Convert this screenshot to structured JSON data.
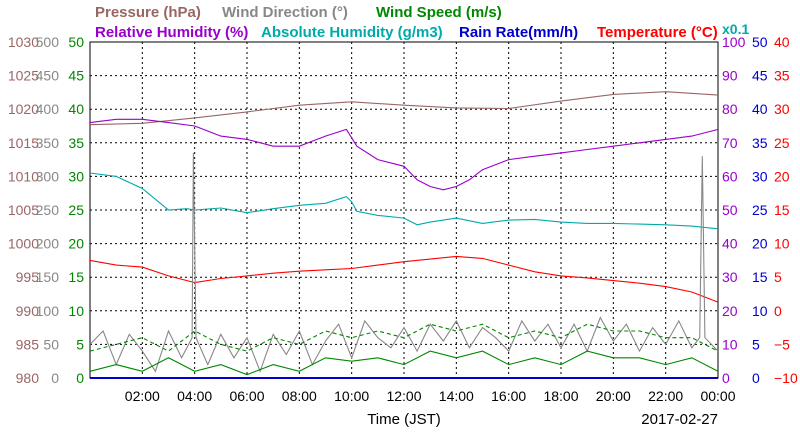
{
  "chart_data": {
    "type": "line",
    "legend": [
      {
        "label": "Pressure (hPa)",
        "color": "#996666"
      },
      {
        "label": "Wind Direction (°)",
        "color": "#888888"
      },
      {
        "label": "Wind Speed (m/s)",
        "color": "#008800"
      },
      {
        "label": "Relative Humidity (%)",
        "color": "#9900cc"
      },
      {
        "label": "Absolute Humidity (g/m3)",
        "color": "#00aaaa"
      },
      {
        "label": "Rain Rate(mm/h)",
        "color": "#0000cc"
      },
      {
        "label": "Temperature (°C)",
        "color": "#ff0000"
      }
    ],
    "scale_note": "x0.1",
    "xlabel": "Time (JST)",
    "date": "2017-02-27",
    "x_ticks": [
      "02:00",
      "04:00",
      "06:00",
      "08:00",
      "10:00",
      "12:00",
      "14:00",
      "16:00",
      "18:00",
      "20:00",
      "22:00",
      "00:00"
    ],
    "x_range": [
      "00:00",
      "24:00"
    ],
    "grid": true,
    "axes": {
      "pressure": {
        "color": "#996666",
        "ticks": [
          "1030",
          "1025",
          "1020",
          "1015",
          "1010",
          "1005",
          "1000",
          "995",
          "990",
          "985",
          "980"
        ],
        "range": [
          980,
          1030
        ]
      },
      "wind_direction": {
        "color": "#888888",
        "ticks": [
          "500",
          "450",
          "400",
          "350",
          "300",
          "250",
          "200",
          "150",
          "100",
          "50",
          "0"
        ],
        "range": [
          0,
          500
        ]
      },
      "wind_speed": {
        "color": "#008800",
        "ticks": [
          "50",
          "45",
          "40",
          "35",
          "30",
          "25",
          "20",
          "15",
          "10",
          "5",
          "0"
        ],
        "range": [
          0,
          50
        ]
      },
      "humidity": {
        "color": "#9900cc",
        "ticks": [
          "100",
          "90",
          "80",
          "70",
          "60",
          "50",
          "40",
          "30",
          "20",
          "10",
          "0"
        ],
        "range": [
          0,
          100
        ]
      },
      "rain_rate": {
        "color": "#0000cc",
        "ticks": [
          "50",
          "45",
          "40",
          "35",
          "30",
          "25",
          "20",
          "15",
          "10",
          "5",
          "0"
        ],
        "range": [
          0,
          50
        ]
      },
      "temperature": {
        "color": "#ff0000",
        "ticks": [
          "40",
          "35",
          "30",
          "25",
          "20",
          "15",
          "10",
          "5",
          "0",
          "−5",
          "−10"
        ],
        "range": [
          -10,
          40
        ]
      }
    },
    "series": [
      {
        "name": "Pressure (hPa)",
        "color": "#996666",
        "x": [
          0,
          2,
          4,
          6,
          8,
          10,
          12,
          14,
          16,
          18,
          20,
          22,
          24
        ],
        "values": [
          1017.7,
          1017.9,
          1018.7,
          1019.6,
          1020.6,
          1021.1,
          1020.6,
          1020.2,
          1020.1,
          1021.2,
          1022.2,
          1022.6,
          1022.1
        ]
      },
      {
        "name": "Relative Humidity (%)",
        "color": "#9900cc",
        "x": [
          0,
          1,
          2,
          3,
          4,
          5,
          6,
          7,
          8,
          9,
          9.8,
          10.2,
          11,
          12,
          12.5,
          13,
          13.5,
          14,
          14.5,
          15,
          16,
          17,
          18,
          19,
          20,
          21,
          22,
          23,
          24
        ],
        "values": [
          76,
          77,
          77,
          76,
          75,
          72,
          71,
          69,
          69,
          72,
          74,
          69,
          65,
          63,
          59,
          57,
          56,
          57,
          59,
          62,
          65,
          66,
          67,
          68,
          69,
          70,
          71,
          72,
          74
        ]
      },
      {
        "name": "Absolute Humidity (g/m3)",
        "color": "#00aaaa",
        "x": [
          0,
          1,
          2,
          3,
          3.7,
          4,
          5,
          6,
          7,
          8,
          9,
          9.8,
          10,
          10.2,
          11,
          12,
          12.5,
          13,
          14,
          15,
          16,
          17,
          18,
          19,
          20,
          21,
          22,
          23,
          24
        ],
        "values": [
          30.5,
          30,
          28.2,
          25,
          25.2,
          25,
          25.3,
          24.6,
          25.2,
          25.7,
          26,
          27,
          26.2,
          24.8,
          24.2,
          23.8,
          22.8,
          23.2,
          23.8,
          23,
          23.5,
          23.6,
          23.2,
          23,
          23,
          22.9,
          22.8,
          22.6,
          22.2
        ]
      },
      {
        "name": "Temperature (°C)",
        "color": "#ff0000",
        "x": [
          0,
          1,
          2,
          3,
          4,
          5,
          6,
          7,
          8,
          9,
          10,
          11,
          12,
          13,
          14,
          15,
          16,
          17,
          18,
          19,
          20,
          21,
          22,
          23,
          24
        ],
        "values": [
          7.5,
          6.8,
          6.5,
          5.2,
          4.2,
          4.8,
          5.2,
          5.6,
          5.9,
          6.1,
          6.3,
          6.8,
          7.3,
          7.7,
          8.1,
          7.8,
          6.8,
          5.8,
          5.2,
          4.9,
          4.5,
          4.1,
          3.6,
          2.8,
          1.3
        ]
      },
      {
        "name": "Wind Direction (°)",
        "color": "#888888",
        "x": [
          0,
          0.5,
          1,
          1.5,
          2,
          2.5,
          3,
          3.5,
          3.9,
          3.95,
          4.05,
          4.5,
          5,
          5.5,
          6,
          6.5,
          7,
          7.5,
          8,
          8.5,
          9,
          9.5,
          10,
          10.5,
          11,
          11.5,
          12,
          12.5,
          13,
          13.5,
          14,
          14.5,
          15,
          15.5,
          16,
          16.5,
          17,
          17.5,
          18,
          18.5,
          19,
          19.5,
          20,
          20.5,
          21,
          21.5,
          22,
          22.5,
          23,
          23.3,
          23.4,
          23.5,
          24
        ],
        "values": [
          50,
          70,
          20,
          65,
          40,
          10,
          70,
          30,
          60,
          335,
          60,
          20,
          65,
          30,
          60,
          10,
          65,
          35,
          70,
          20,
          55,
          80,
          30,
          85,
          60,
          45,
          75,
          40,
          80,
          55,
          85,
          45,
          75,
          60,
          40,
          85,
          55,
          80,
          45,
          80,
          40,
          90,
          55,
          80,
          40,
          75,
          50,
          85,
          45,
          60,
          330,
          60,
          40
        ]
      },
      {
        "name": "Wind Speed (m/s)",
        "color": "#008800",
        "x": [
          0,
          1,
          2,
          3,
          4,
          5,
          6,
          7,
          8,
          9,
          10,
          11,
          12,
          13,
          14,
          15,
          16,
          17,
          18,
          19,
          20,
          21,
          22,
          23,
          24
        ],
        "values": [
          1,
          2,
          1,
          3,
          1,
          2,
          0.5,
          2,
          1,
          3,
          2.5,
          3,
          2,
          4,
          3,
          4,
          2,
          3,
          2,
          4,
          3,
          3,
          2,
          3,
          1
        ]
      },
      {
        "name": "Wind Speed (m/s) gust",
        "color": "#008800",
        "x": [
          0,
          1,
          2,
          3,
          4,
          5,
          6,
          7,
          8,
          9,
          10,
          11,
          12,
          13,
          14,
          15,
          16,
          17,
          18,
          19,
          20,
          21,
          22,
          23,
          24
        ],
        "values": [
          4,
          5,
          6,
          4,
          7,
          5,
          4,
          6,
          5,
          7,
          6,
          7,
          6,
          8,
          7,
          8,
          6,
          7,
          6,
          8,
          7,
          7,
          6,
          6,
          4
        ]
      },
      {
        "name": "Rain Rate(mm/h)",
        "color": "#0000cc",
        "x": [
          0,
          24
        ],
        "values": [
          0,
          0
        ]
      }
    ]
  }
}
